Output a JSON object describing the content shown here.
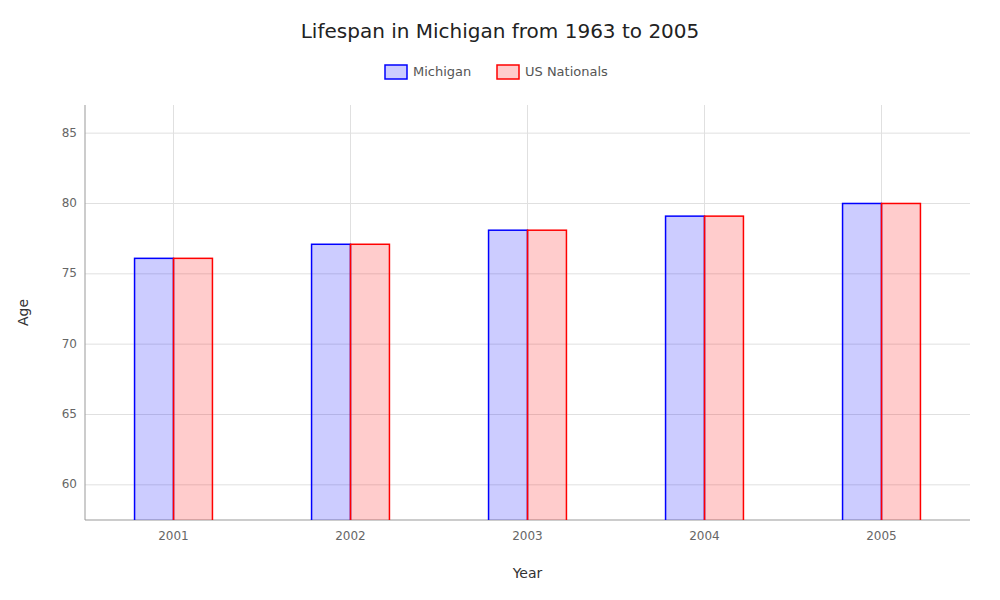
{
  "chart_data": {
    "type": "bar",
    "title": "Lifespan in Michigan from 1963 to 2005",
    "x_label": "Year",
    "y_label": "Age",
    "categories": [
      "2001",
      "2002",
      "2003",
      "2004",
      "2005"
    ],
    "series": [
      {
        "name": "Michigan",
        "color": "#0000ff",
        "values": [
          76.1,
          77.1,
          78.1,
          79.1,
          80.0
        ]
      },
      {
        "name": "US Nationals",
        "color": "#ff0000",
        "values": [
          76.1,
          77.1,
          78.1,
          79.1,
          80.0
        ]
      }
    ],
    "ylim": [
      57.5,
      87
    ],
    "yticks": [
      60,
      65,
      70,
      75,
      80,
      85
    ],
    "grid": true,
    "legend": "top"
  }
}
